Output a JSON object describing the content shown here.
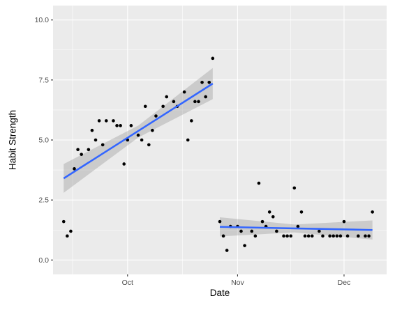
{
  "chart_data": {
    "type": "scatter",
    "xlabel": "Date",
    "ylabel": "Habit Strength",
    "x_axis": {
      "type": "date",
      "range": [
        "2023-09-10",
        "2023-12-13"
      ],
      "ticks": [
        {
          "value": "2023-10-01",
          "label": "Oct"
        },
        {
          "value": "2023-11-01",
          "label": "Nov"
        },
        {
          "value": "2023-12-01",
          "label": "Dec"
        }
      ]
    },
    "y_axis": {
      "range": [
        -0.6,
        10.6
      ],
      "ticks": [
        {
          "value": 0,
          "label": "0.0"
        },
        {
          "value": 2.5,
          "label": "2.5"
        },
        {
          "value": 5,
          "label": "5.0"
        },
        {
          "value": 7.5,
          "label": "7.5"
        },
        {
          "value": 10,
          "label": "10.0"
        }
      ]
    },
    "grid": true,
    "colors": {
      "panel": "#EBEBEB",
      "grid_major": "#FFFFFF",
      "points": "#000000",
      "trend_line": "#3366FF",
      "confidence_band": "#999999"
    },
    "points": [
      {
        "x": "2023-09-13",
        "y": 1.6
      },
      {
        "x": "2023-09-14",
        "y": 1.0
      },
      {
        "x": "2023-09-15",
        "y": 1.2
      },
      {
        "x": "2023-09-16",
        "y": 3.8
      },
      {
        "x": "2023-09-17",
        "y": 4.6
      },
      {
        "x": "2023-09-18",
        "y": 4.4
      },
      {
        "x": "2023-09-20",
        "y": 4.6
      },
      {
        "x": "2023-09-21",
        "y": 5.4
      },
      {
        "x": "2023-09-22",
        "y": 5.0
      },
      {
        "x": "2023-09-23",
        "y": 5.8
      },
      {
        "x": "2023-09-24",
        "y": 4.8
      },
      {
        "x": "2023-09-25",
        "y": 5.8
      },
      {
        "x": "2023-09-27",
        "y": 5.8
      },
      {
        "x": "2023-09-28",
        "y": 5.6
      },
      {
        "x": "2023-09-29",
        "y": 5.6
      },
      {
        "x": "2023-09-30",
        "y": 4.0
      },
      {
        "x": "2023-10-01",
        "y": 5.0
      },
      {
        "x": "2023-10-02",
        "y": 5.6
      },
      {
        "x": "2023-10-04",
        "y": 5.2
      },
      {
        "x": "2023-10-05",
        "y": 5.0
      },
      {
        "x": "2023-10-06",
        "y": 6.4
      },
      {
        "x": "2023-10-07",
        "y": 4.8
      },
      {
        "x": "2023-10-08",
        "y": 5.4
      },
      {
        "x": "2023-10-09",
        "y": 6.0
      },
      {
        "x": "2023-10-11",
        "y": 6.4
      },
      {
        "x": "2023-10-12",
        "y": 6.8
      },
      {
        "x": "2023-10-14",
        "y": 6.6
      },
      {
        "x": "2023-10-15",
        "y": 6.4
      },
      {
        "x": "2023-10-17",
        "y": 7.0
      },
      {
        "x": "2023-10-18",
        "y": 5.0
      },
      {
        "x": "2023-10-19",
        "y": 5.8
      },
      {
        "x": "2023-10-20",
        "y": 6.6
      },
      {
        "x": "2023-10-21",
        "y": 6.6
      },
      {
        "x": "2023-10-22",
        "y": 7.4
      },
      {
        "x": "2023-10-23",
        "y": 6.8
      },
      {
        "x": "2023-10-24",
        "y": 7.4
      },
      {
        "x": "2023-10-25",
        "y": 8.4
      },
      {
        "x": "2023-10-27",
        "y": 1.6
      },
      {
        "x": "2023-10-28",
        "y": 1.0
      },
      {
        "x": "2023-10-29",
        "y": 0.4
      },
      {
        "x": "2023-10-30",
        "y": 1.4
      },
      {
        "x": "2023-11-01",
        "y": 1.4
      },
      {
        "x": "2023-11-02",
        "y": 1.2
      },
      {
        "x": "2023-11-03",
        "y": 0.6
      },
      {
        "x": "2023-11-05",
        "y": 1.2
      },
      {
        "x": "2023-11-06",
        "y": 1.0
      },
      {
        "x": "2023-11-07",
        "y": 3.2
      },
      {
        "x": "2023-11-08",
        "y": 1.6
      },
      {
        "x": "2023-11-09",
        "y": 1.4
      },
      {
        "x": "2023-11-10",
        "y": 2.0
      },
      {
        "x": "2023-11-11",
        "y": 1.8
      },
      {
        "x": "2023-11-12",
        "y": 1.2
      },
      {
        "x": "2023-11-14",
        "y": 1.0
      },
      {
        "x": "2023-11-15",
        "y": 1.0
      },
      {
        "x": "2023-11-16",
        "y": 1.0
      },
      {
        "x": "2023-11-17",
        "y": 3.0
      },
      {
        "x": "2023-11-18",
        "y": 1.4
      },
      {
        "x": "2023-11-19",
        "y": 2.0
      },
      {
        "x": "2023-11-20",
        "y": 1.0
      },
      {
        "x": "2023-11-21",
        "y": 1.0
      },
      {
        "x": "2023-11-22",
        "y": 1.0
      },
      {
        "x": "2023-11-24",
        "y": 1.2
      },
      {
        "x": "2023-11-25",
        "y": 1.0
      },
      {
        "x": "2023-11-27",
        "y": 1.0
      },
      {
        "x": "2023-11-28",
        "y": 1.0
      },
      {
        "x": "2023-11-29",
        "y": 1.0
      },
      {
        "x": "2023-11-30",
        "y": 1.0
      },
      {
        "x": "2023-12-01",
        "y": 1.6
      },
      {
        "x": "2023-12-02",
        "y": 1.0
      },
      {
        "x": "2023-12-05",
        "y": 1.0
      },
      {
        "x": "2023-12-07",
        "y": 1.0
      },
      {
        "x": "2023-12-08",
        "y": 1.0
      },
      {
        "x": "2023-12-09",
        "y": 2.0
      }
    ],
    "trend_segments": [
      {
        "method": "linear",
        "start": {
          "x": "2023-09-13",
          "y": 3.4
        },
        "end": {
          "x": "2023-10-25",
          "y": 7.35
        },
        "band": [
          {
            "x": "2023-09-13",
            "lower": 2.8,
            "upper": 4.0
          },
          {
            "x": "2023-10-04",
            "lower": 5.1,
            "upper": 5.6
          },
          {
            "x": "2023-10-25",
            "lower": 6.7,
            "upper": 8.0
          }
        ]
      },
      {
        "method": "linear",
        "start": {
          "x": "2023-10-27",
          "y": 1.38
        },
        "end": {
          "x": "2023-12-09",
          "y": 1.25
        },
        "band": [
          {
            "x": "2023-10-27",
            "lower": 0.98,
            "upper": 1.78
          },
          {
            "x": "2023-11-17",
            "lower": 1.15,
            "upper": 1.48
          },
          {
            "x": "2023-12-09",
            "lower": 0.85,
            "upper": 1.65
          }
        ]
      }
    ]
  }
}
